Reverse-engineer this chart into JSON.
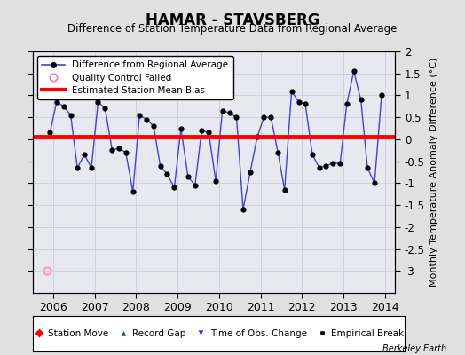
{
  "title": "HAMAR - STAVSBERG",
  "subtitle": "Difference of Station Temperature Data from Regional Average",
  "ylabel": "Monthly Temperature Anomaly Difference (°C)",
  "credit": "Berkeley Earth",
  "xlim": [
    2005.5,
    2014.25
  ],
  "ylim": [
    -3.5,
    2.0
  ],
  "yticks": [
    -3.0,
    -2.5,
    -2.0,
    -1.5,
    -1.0,
    -0.5,
    0.0,
    0.5,
    1.0,
    1.5,
    2.0
  ],
  "xticks": [
    2006,
    2007,
    2008,
    2009,
    2010,
    2011,
    2012,
    2013,
    2014
  ],
  "bias_value": 0.05,
  "station_move_x": 2005.85,
  "station_move_y": -3.0,
  "background_color": "#e0e0e0",
  "plot_bg": "#e8e8f0",
  "data_x": [
    2005.92,
    2006.08,
    2006.25,
    2006.42,
    2006.58,
    2006.75,
    2006.92,
    2007.08,
    2007.25,
    2007.42,
    2007.58,
    2007.75,
    2007.92,
    2008.08,
    2008.25,
    2008.42,
    2008.58,
    2008.75,
    2008.92,
    2009.08,
    2009.25,
    2009.42,
    2009.58,
    2009.75,
    2009.92,
    2010.08,
    2010.25,
    2010.42,
    2010.58,
    2010.75,
    2010.92,
    2011.08,
    2011.25,
    2011.42,
    2011.58,
    2011.75,
    2011.92,
    2012.08,
    2012.25,
    2012.42,
    2012.58,
    2012.75,
    2012.92,
    2013.08,
    2013.25,
    2013.42,
    2013.58,
    2013.75,
    2013.92
  ],
  "data_y": [
    0.15,
    0.85,
    0.75,
    0.55,
    -0.65,
    -0.35,
    -0.65,
    0.85,
    0.7,
    -0.25,
    -0.2,
    -0.3,
    -1.2,
    0.55,
    0.45,
    0.3,
    -0.6,
    -0.8,
    -1.1,
    0.25,
    -0.85,
    -1.05,
    0.2,
    0.15,
    -0.95,
    0.65,
    0.6,
    0.5,
    -1.6,
    -0.75,
    0.05,
    0.5,
    0.5,
    -0.3,
    -1.15,
    1.1,
    0.85,
    0.8,
    -0.35,
    -0.65,
    -0.6,
    -0.55,
    -0.55,
    0.8,
    1.55,
    0.9,
    -0.65,
    -1.0,
    1.0
  ],
  "line_color": "#4444cc",
  "marker_color": "black",
  "bias_color": "red",
  "grid_color": "#ccccdd"
}
